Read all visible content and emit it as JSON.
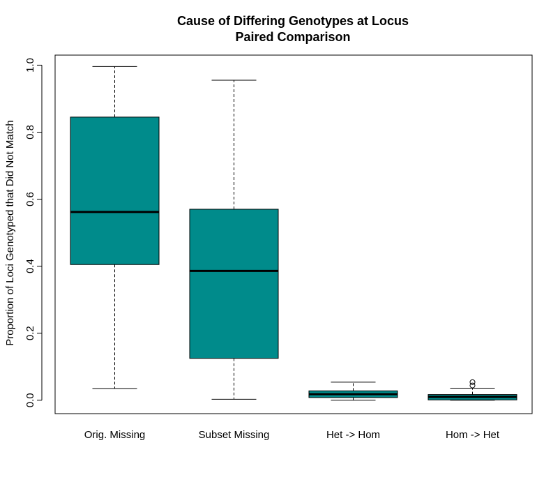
{
  "chart_data": {
    "type": "box",
    "title_line1": "Cause of Differing Genotypes at Locus",
    "title_line2": "Paired Comparison",
    "xlabel": "",
    "ylabel": "Proportion of Loci Genotyped that Did Not Match",
    "ylim": [
      -0.04,
      1.03
    ],
    "yticks": [
      {
        "value": 0.0,
        "label": "0.0"
      },
      {
        "value": 0.2,
        "label": "0.2"
      },
      {
        "value": 0.4,
        "label": "0.4"
      },
      {
        "value": 0.6,
        "label": "0.6"
      },
      {
        "value": 0.8,
        "label": "0.8"
      },
      {
        "value": 1.0,
        "label": "1.0"
      }
    ],
    "box_color": "#008b8b",
    "boxes": [
      {
        "label": "Orig. Missing",
        "whisker_low": 0.035,
        "q1": 0.405,
        "median": 0.562,
        "q3": 0.845,
        "whisker_high": 0.996,
        "outliers": []
      },
      {
        "label": "Subset Missing",
        "whisker_low": 0.003,
        "q1": 0.125,
        "median": 0.386,
        "q3": 0.57,
        "whisker_high": 0.955,
        "outliers": []
      },
      {
        "label": "Het -> Hom",
        "whisker_low": 0.0,
        "q1": 0.008,
        "median": 0.018,
        "q3": 0.028,
        "whisker_high": 0.054,
        "outliers": []
      },
      {
        "label": "Hom -> Het",
        "whisker_low": 0.0,
        "q1": 0.001,
        "median": 0.01,
        "q3": 0.017,
        "whisker_high": 0.036,
        "outliers": [
          0.044,
          0.054
        ]
      }
    ]
  }
}
